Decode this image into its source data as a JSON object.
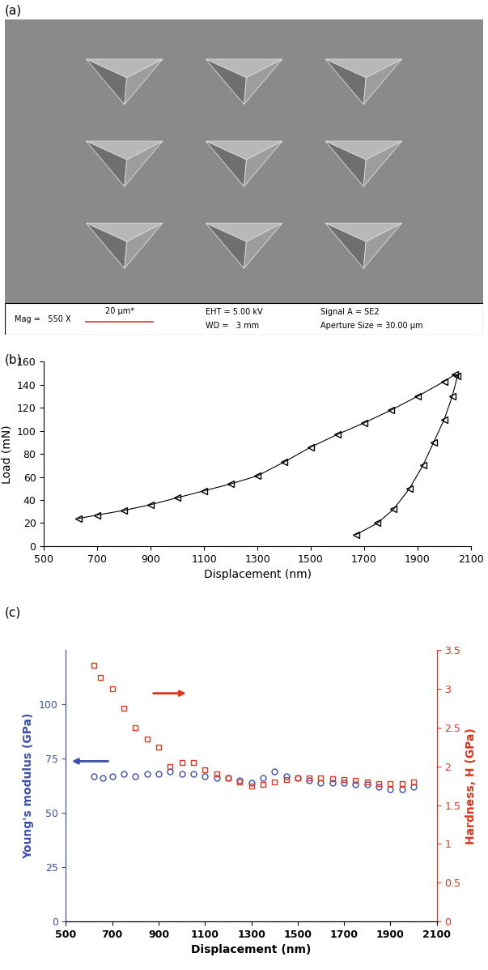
{
  "micrograph": {
    "label": "(a)",
    "info": {
      "mag": "Mag =   550 X",
      "scale_bar": "20 µm*",
      "eht": "EHT = 5.00 kV",
      "wd": "WD =   3 mm",
      "signal": "Signal A = SE2",
      "aperture": "Aperture Size = 30.00 µm"
    }
  },
  "chart_data": [
    {
      "type": "line",
      "title": "(b)",
      "xlabel": "Displacement (nm)",
      "ylabel": "Load (mN)",
      "color": "#000000",
      "marker": "triangle",
      "line_style": "solid",
      "x": [
        630,
        700,
        800,
        900,
        1000,
        1100,
        1200,
        1300,
        1400,
        1500,
        1600,
        1700,
        1800,
        1900,
        2000,
        2040,
        2050,
        2030,
        2000,
        1960,
        1920,
        1870,
        1810,
        1750,
        1670
      ],
      "values": [
        24,
        27,
        31,
        36,
        42,
        48,
        54,
        61,
        73,
        86,
        97,
        107,
        118,
        130,
        143,
        149,
        148,
        130,
        110,
        90,
        70,
        50,
        32,
        20,
        10
      ],
      "xlim": [
        500,
        2100
      ],
      "xticks": [
        500,
        700,
        900,
        1100,
        1300,
        1500,
        1700,
        1900,
        2100
      ],
      "ylim": [
        0,
        160
      ],
      "yticks": [
        0,
        20,
        40,
        60,
        80,
        100,
        120,
        140,
        160
      ]
    },
    {
      "type": "scatter",
      "title": "(c)",
      "xlabel": "Displacement (nm)",
      "ylabel": "Young's modulus (GPa)",
      "y2label": "Hardness, H (GPa)",
      "ylabel_color": "#3a4fb0",
      "y2label_color": "#e0341c",
      "series": [
        {
          "color": "#3a4fb0",
          "marker": "circle",
          "line_style": "none",
          "axis": "y",
          "x": [
            620,
            660,
            700,
            750,
            800,
            850,
            900,
            950,
            1000,
            1050,
            1100,
            1150,
            1200,
            1250,
            1300,
            1350,
            1400,
            1450,
            1500,
            1550,
            1600,
            1650,
            1700,
            1750,
            1800,
            1850,
            1900,
            1950,
            2000
          ],
          "values": [
            67,
            66,
            67,
            68,
            67,
            68,
            68,
            69,
            68,
            68,
            67,
            66,
            66,
            65,
            64,
            66,
            69,
            67,
            66,
            65,
            64,
            64,
            64,
            63,
            63,
            62,
            61,
            61,
            62
          ]
        },
        {
          "color": "#e0341c",
          "marker": "square",
          "line_style": "none",
          "axis": "y2",
          "x": [
            620,
            650,
            700,
            750,
            800,
            850,
            900,
            950,
            1000,
            1050,
            1100,
            1150,
            1200,
            1250,
            1300,
            1350,
            1400,
            1450,
            1500,
            1550,
            1600,
            1650,
            1700,
            1750,
            1800,
            1850,
            1900,
            1950,
            2000
          ],
          "values": [
            3.3,
            3.15,
            3.0,
            2.75,
            2.5,
            2.35,
            2.25,
            2.0,
            2.05,
            2.05,
            1.95,
            1.9,
            1.85,
            1.8,
            1.75,
            1.77,
            1.8,
            1.83,
            1.85,
            1.85,
            1.85,
            1.84,
            1.83,
            1.82,
            1.8,
            1.78,
            1.78,
            1.78,
            1.8
          ]
        }
      ],
      "xlim": [
        500,
        2100
      ],
      "xticks": [
        500,
        700,
        900,
        1100,
        1300,
        1500,
        1700,
        1900,
        2100
      ],
      "ylim": [
        0,
        125
      ],
      "yticks": [
        0,
        25,
        50,
        75,
        100
      ],
      "y2lim": [
        0,
        3.5
      ],
      "y2ticks": [
        0,
        0.5,
        1,
        1.5,
        2,
        2.5,
        3,
        3.5
      ]
    }
  ]
}
